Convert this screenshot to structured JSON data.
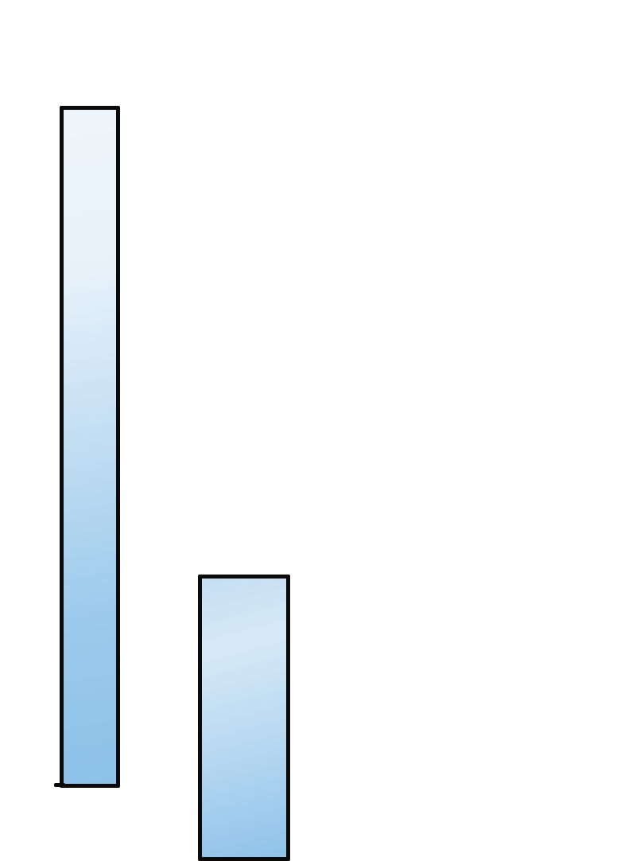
{
  "panels": [
    {
      "id": "panel-1",
      "fill_top": "#eef5fa",
      "fill_bottom": "#8dc1e8",
      "border": "#0a0a0a"
    },
    {
      "id": "panel-2",
      "fill_top": "#c4def2",
      "fill_bottom": "#8fc2ea",
      "border": "#0a0a0a"
    }
  ],
  "background": "#ffffff"
}
